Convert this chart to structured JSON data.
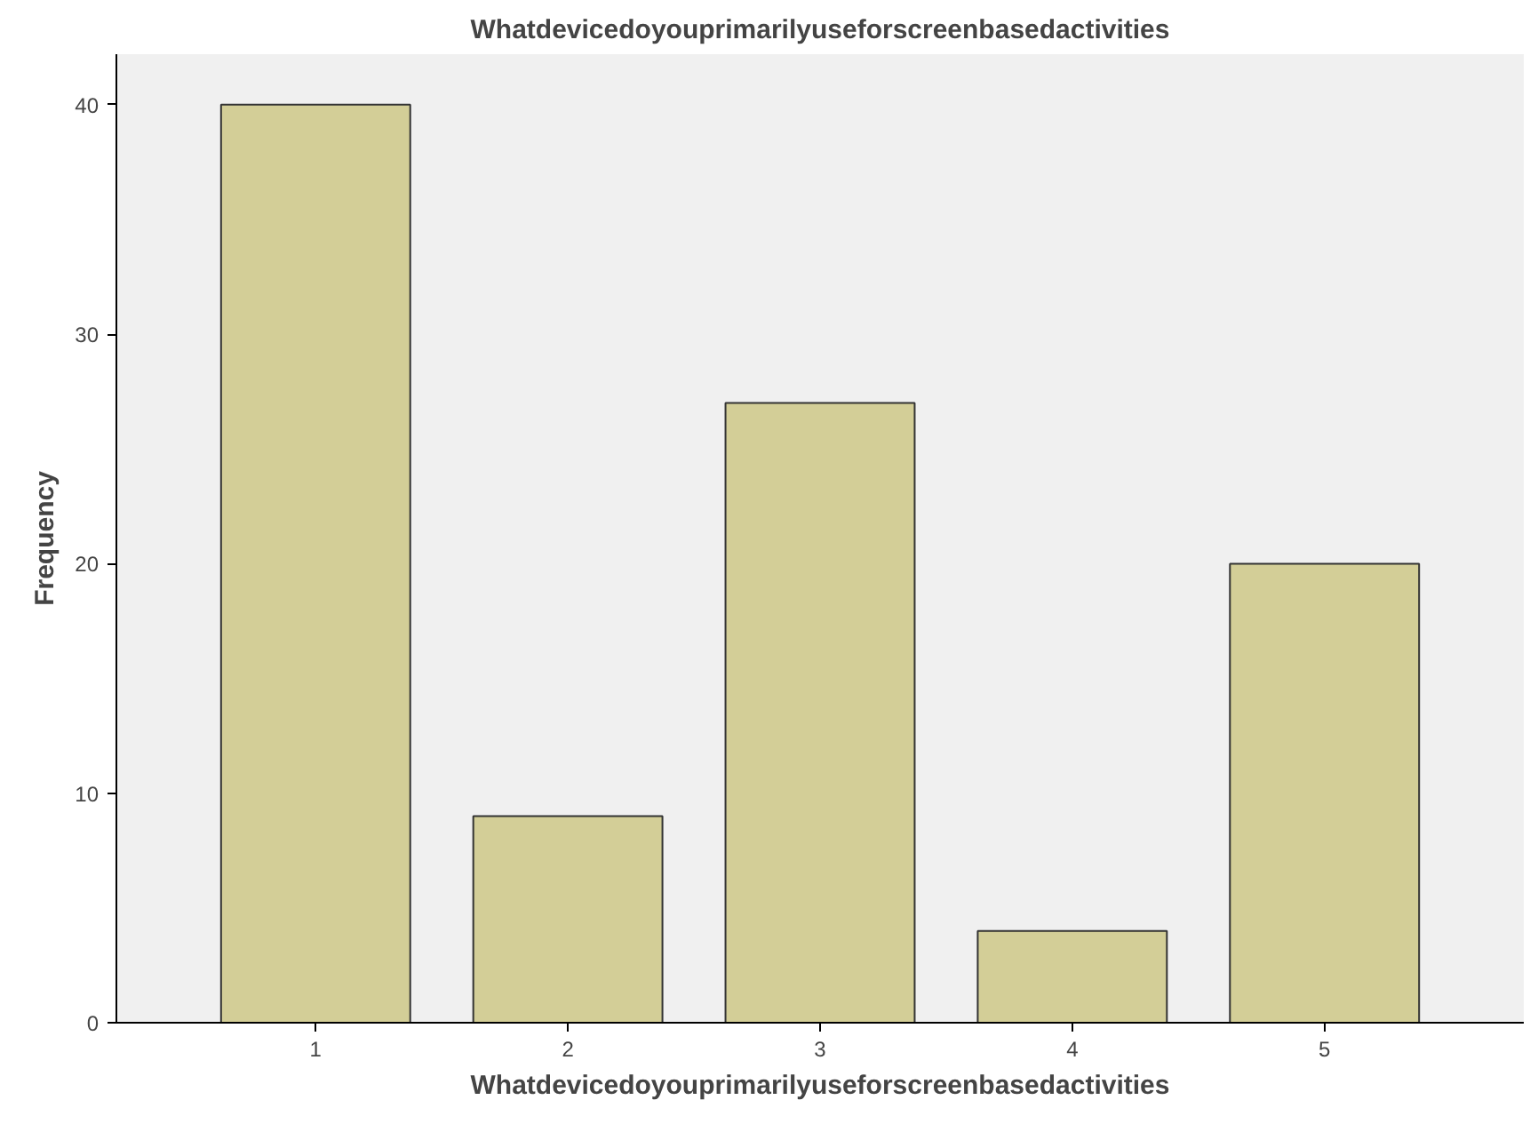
{
  "chart_data": {
    "type": "bar",
    "title": "Whatdevicedoyouprimarilyuseforscreenbasedactivities",
    "xlabel": "Whatdevicedoyouprimarilyuseforscreenbasedactivities",
    "ylabel": "Frequency",
    "categories": [
      "1",
      "2",
      "3",
      "4",
      "5"
    ],
    "values": [
      40,
      9,
      27,
      4,
      20
    ],
    "color": "#d3ce97",
    "ylim": [
      0,
      42.2
    ],
    "yticks": [
      0,
      10,
      20,
      30,
      40
    ],
    "grid": false
  }
}
